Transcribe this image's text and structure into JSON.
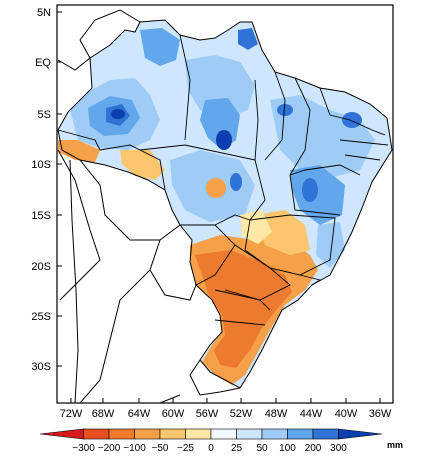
{
  "map": {
    "x_axis_labels": [
      "72W",
      "68W",
      "64W",
      "60W",
      "56W",
      "52W",
      "48W",
      "44W",
      "40W",
      "36W"
    ],
    "y_axis_labels": [
      "5N",
      "EQ",
      "5S",
      "10S",
      "15S",
      "20S",
      "25S",
      "30S"
    ]
  },
  "colorbar": {
    "labels": [
      "-300",
      "-200",
      "-100",
      "-50",
      "-25",
      "0",
      "25",
      "50",
      "100",
      "200",
      "300"
    ],
    "unit": "mm",
    "colors": [
      "#d7191c",
      "#e84e1f",
      "#f07a2b",
      "#f6a04a",
      "#fbc66e",
      "#fee8a8",
      "#f4f8ff",
      "#cfe6ff",
      "#9fccf6",
      "#62a6ec",
      "#2f73d6",
      "#0b3fb0"
    ]
  },
  "colors": {
    "strong_negative": "#ec7a2f",
    "moderate_negative": "#f6a04a",
    "weak_negative": "#fbc66e",
    "near_zero": "#fee8a8",
    "weak_positive": "#cfe6ff",
    "moderate_positive": "#9fccf6",
    "strong_positive": "#62a6ec",
    "very_strong_positive": "#2f73d6",
    "extreme_positive": "#0b3fb0"
  }
}
